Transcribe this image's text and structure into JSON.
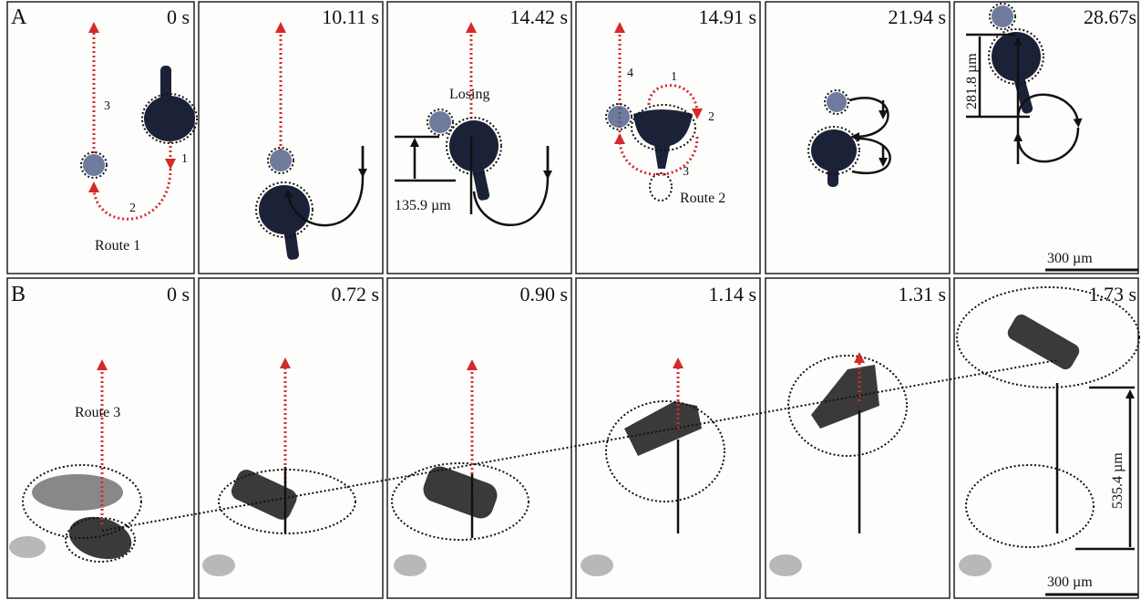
{
  "rows": [
    {
      "label": "A",
      "times": [
        "0 s",
        "10.11 s",
        "14.42 s",
        "14.91 s",
        "21.94 s",
        "28.67s"
      ],
      "notes": [
        "3",
        "1",
        "2",
        "Route 1",
        "Losing",
        "135.9 µm",
        "4",
        "1",
        "2",
        "3",
        "Route 2",
        "281.8 µm",
        "300 µm"
      ]
    },
    {
      "label": "B",
      "times": [
        "0 s",
        "0.72 s",
        "0.90 s",
        "1.14 s",
        "1.31 s",
        "1.73 s"
      ],
      "notes": [
        "Route 3",
        "535.4 µm",
        "300 µm"
      ]
    }
  ]
}
